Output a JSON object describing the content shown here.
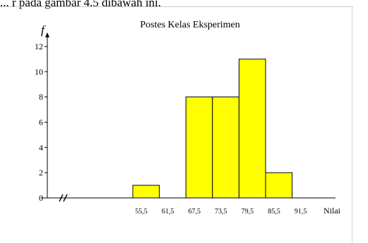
{
  "page": {
    "caption_fragment": "... r  pada gambar 4.5 dibawah ini."
  },
  "chart_data": {
    "type": "bar",
    "title": "Postes Kelas Eksperimen",
    "ylabel": "f",
    "xlabel": "Nilai",
    "ylim": [
      0,
      12
    ],
    "yticks": [
      0,
      2,
      4,
      6,
      8,
      10,
      12
    ],
    "axis_break": true,
    "boundaries": [
      "55,5",
      "61,5",
      "67,5",
      "73,5",
      "79,5",
      "85,5",
      "91,5"
    ],
    "values": [
      1,
      0,
      8,
      8,
      11,
      2
    ],
    "bar_color": "#ffff00",
    "grid": false,
    "legend": "none"
  }
}
